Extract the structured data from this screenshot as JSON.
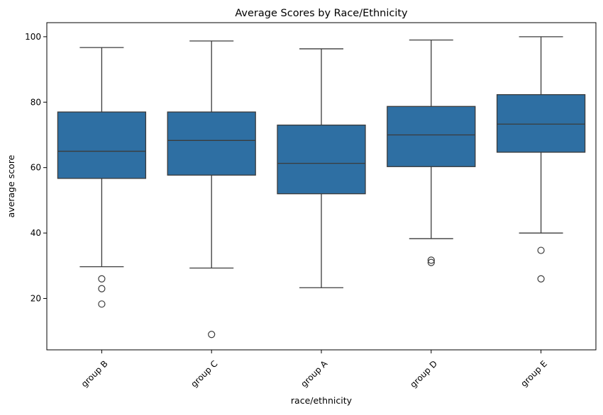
{
  "chart_data": {
    "type": "box",
    "title": "Average Scores by Race/Ethnicity",
    "xlabel": "race/ethnicity",
    "ylabel": "average score",
    "ylim": [
      4.3,
      104.3
    ],
    "yticks": [
      20,
      40,
      60,
      80,
      100
    ],
    "x_tick_rotation": 45,
    "grid": false,
    "legend": "none",
    "colors": {
      "box_fill": "#2e6fa3",
      "line": "#3b3b3b",
      "axis": "#000000",
      "background": "#ffffff"
    },
    "categories": [
      "group B",
      "group C",
      "group A",
      "group D",
      "group E"
    ],
    "boxes": [
      {
        "category": "group B",
        "whisker_low": 29.7,
        "q1": 56.7,
        "median": 65.0,
        "q3": 77.0,
        "whisker_high": 96.7,
        "outliers": [
          26.0,
          23.0,
          18.3
        ]
      },
      {
        "category": "group C",
        "whisker_low": 29.3,
        "q1": 57.7,
        "median": 68.3,
        "q3": 77.0,
        "whisker_high": 98.7,
        "outliers": [
          9.0
        ]
      },
      {
        "category": "group A",
        "whisker_low": 23.3,
        "q1": 52.0,
        "median": 61.3,
        "q3": 73.0,
        "whisker_high": 96.3,
        "outliers": []
      },
      {
        "category": "group D",
        "whisker_low": 38.3,
        "q1": 60.3,
        "median": 70.0,
        "q3": 78.7,
        "whisker_high": 99.0,
        "outliers": [
          31.7,
          31.0
        ]
      },
      {
        "category": "group E",
        "whisker_low": 40.0,
        "q1": 64.7,
        "median": 73.3,
        "q3": 82.3,
        "whisker_high": 100.0,
        "outliers": [
          34.7,
          26.0
        ]
      }
    ]
  }
}
